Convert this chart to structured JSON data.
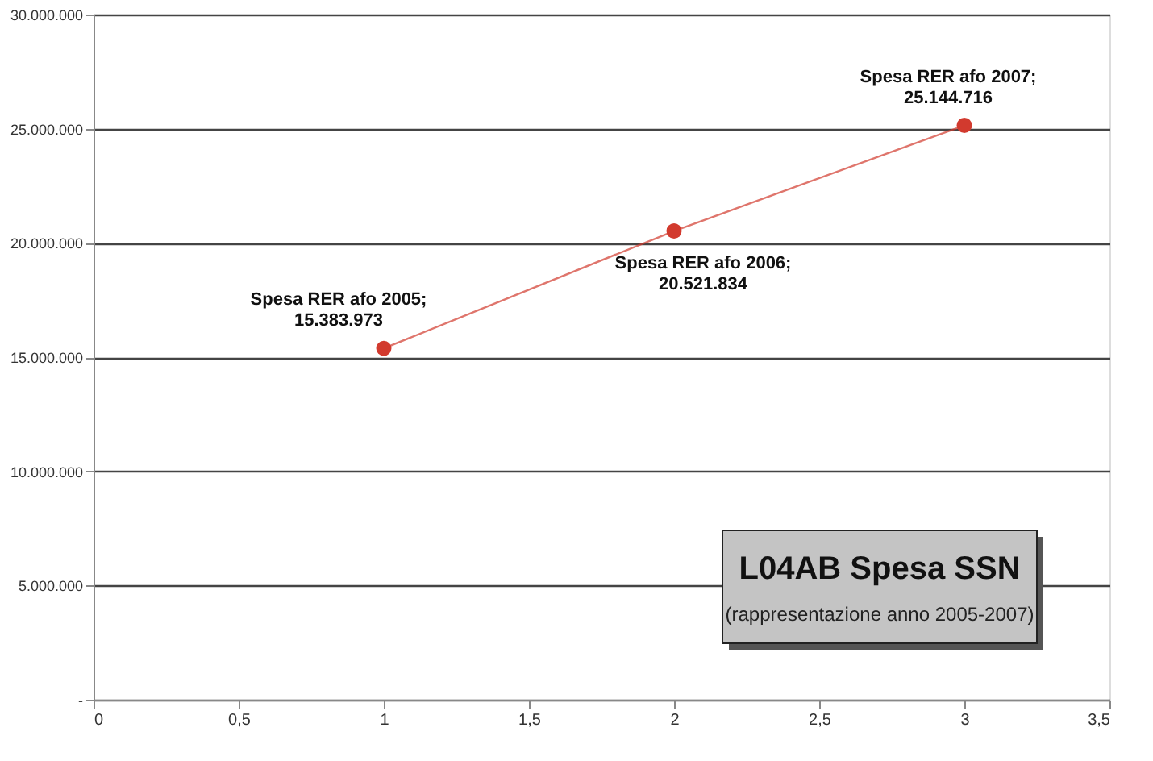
{
  "chart_data": {
    "type": "line",
    "title": "L04AB Spesa SSN",
    "subtitle": "(rappresentazione anno 2005-2007)",
    "x": [
      1,
      2,
      3
    ],
    "series": [
      {
        "color": "#d23a2e",
        "values": [
          15383973,
          20521834,
          25144716
        ]
      }
    ],
    "annotations": [
      {
        "text": "Spesa RER afo 2005;\n15.383.973",
        "x": 1,
        "y": 15383973
      },
      {
        "text": "Spesa RER afo 2006;\n20.521.834",
        "x": 2,
        "y": 20521834
      },
      {
        "text": "Spesa RER afo 2007;\n25.144.716",
        "x": 3,
        "y": 25144716
      }
    ],
    "xlim": [
      0,
      3.5
    ],
    "xticks": [
      0,
      {
        "value": 0.5,
        "label": "0,5"
      },
      1,
      {
        "value": 1.5,
        "label": "1,5"
      },
      2,
      {
        "value": 2.5,
        "label": "2,5"
      },
      3,
      {
        "value": 3.5,
        "label": "3,5"
      }
    ],
    "ylim": [
      0,
      30000000
    ],
    "yticks": [
      {
        "value": 0,
        "label": "-"
      },
      {
        "value": 5000000,
        "label": "5.000.000"
      },
      {
        "value": 10000000,
        "label": "10.000.000"
      },
      {
        "value": 15000000,
        "label": "15.000.000"
      },
      {
        "value": 20000000,
        "label": "20.000.000"
      },
      {
        "value": 25000000,
        "label": "25.000.000"
      },
      {
        "value": 30000000,
        "label": "30.000.000"
      }
    ],
    "grid": "y",
    "marker": "circle",
    "line_style": "solid"
  }
}
